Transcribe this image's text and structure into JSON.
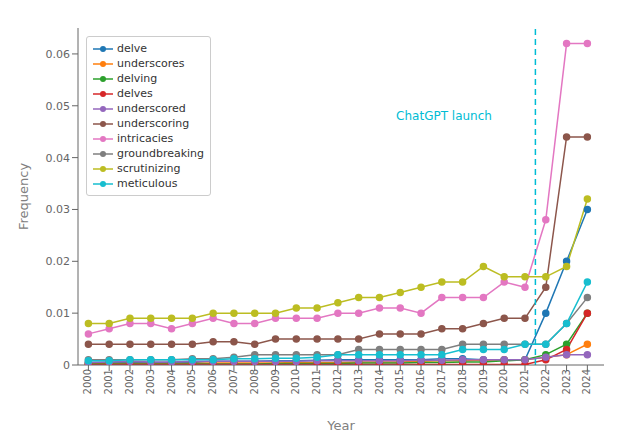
{
  "chart_data": {
    "type": "line",
    "xlabel": "Year",
    "ylabel": "Frequency",
    "x": [
      2000,
      2001,
      2002,
      2003,
      2004,
      2005,
      2006,
      2007,
      2008,
      2009,
      2010,
      2011,
      2012,
      2013,
      2014,
      2015,
      2016,
      2017,
      2018,
      2019,
      2020,
      2021,
      2022,
      2023,
      2024
    ],
    "xlim": [
      1999.5,
      2024.8
    ],
    "xticks": [
      2000,
      2001,
      2002,
      2003,
      2004,
      2005,
      2006,
      2007,
      2008,
      2009,
      2010,
      2011,
      2012,
      2013,
      2014,
      2015,
      2016,
      2017,
      2018,
      2019,
      2020,
      2021,
      2022,
      2023,
      2024
    ],
    "ylim": [
      0,
      0.065
    ],
    "yticks": [
      0,
      0.01,
      0.02,
      0.03,
      0.04,
      0.05,
      0.06
    ],
    "grid": false,
    "legend": "upper left",
    "marker": "circle",
    "line_style": "solid",
    "series": [
      {
        "name": "delve",
        "color": "#1f77b4",
        "values": [
          0.0005,
          0.0005,
          0.0005,
          0.0005,
          0.0005,
          0.0005,
          0.0007,
          0.0007,
          0.0007,
          0.0008,
          0.0008,
          0.0009,
          0.001,
          0.001,
          0.001,
          0.001,
          0.001,
          0.0012,
          0.0012,
          0.001,
          0.001,
          0.001,
          0.01,
          0.02,
          0.03
        ]
      },
      {
        "name": "underscores",
        "color": "#ff7f0e",
        "values": [
          0.0003,
          0.0003,
          0.0003,
          0.0003,
          0.0003,
          0.0003,
          0.0004,
          0.0004,
          0.0004,
          0.0004,
          0.0005,
          0.0005,
          0.0005,
          0.0006,
          0.0006,
          0.0006,
          0.0007,
          0.0008,
          0.0008,
          0.0009,
          0.001,
          0.001,
          0.0015,
          0.002,
          0.004
        ]
      },
      {
        "name": "delving",
        "color": "#2ca02c",
        "values": [
          0.0002,
          0.0002,
          0.0002,
          0.0002,
          0.0002,
          0.0002,
          0.0002,
          0.0002,
          0.0002,
          0.0003,
          0.0003,
          0.0003,
          0.0003,
          0.0004,
          0.0004,
          0.0004,
          0.0005,
          0.0005,
          0.0006,
          0.0006,
          0.0008,
          0.001,
          0.002,
          0.004,
          0.01
        ]
      },
      {
        "name": "delves",
        "color": "#d62728",
        "values": [
          0.0001,
          0.0001,
          0.0001,
          0.0001,
          0.0001,
          0.0001,
          0.0001,
          0.0001,
          0.0001,
          0.0001,
          0.0001,
          0.0001,
          0.0001,
          0.0001,
          0.0001,
          0.0001,
          0.0001,
          0.0001,
          0.0001,
          0.0001,
          0.0001,
          0.0001,
          0.001,
          0.003,
          0.01
        ]
      },
      {
        "name": "underscored",
        "color": "#9467bd",
        "values": [
          0.0005,
          0.0006,
          0.0007,
          0.0006,
          0.0006,
          0.0007,
          0.0007,
          0.0007,
          0.0007,
          0.0007,
          0.0007,
          0.0008,
          0.0008,
          0.0008,
          0.0008,
          0.0008,
          0.0009,
          0.0009,
          0.001,
          0.001,
          0.001,
          0.001,
          0.0015,
          0.002,
          0.002
        ]
      },
      {
        "name": "underscoring",
        "color": "#8c564b",
        "values": [
          0.004,
          0.004,
          0.004,
          0.004,
          0.004,
          0.004,
          0.0045,
          0.0045,
          0.004,
          0.005,
          0.005,
          0.005,
          0.005,
          0.005,
          0.006,
          0.006,
          0.006,
          0.007,
          0.007,
          0.008,
          0.009,
          0.009,
          0.015,
          0.044,
          0.044
        ]
      },
      {
        "name": "intricacies",
        "color": "#e377c2",
        "values": [
          0.006,
          0.007,
          0.008,
          0.008,
          0.007,
          0.008,
          0.009,
          0.008,
          0.008,
          0.009,
          0.009,
          0.009,
          0.01,
          0.01,
          0.011,
          0.011,
          0.01,
          0.013,
          0.013,
          0.013,
          0.016,
          0.015,
          0.028,
          0.062,
          0.062
        ]
      },
      {
        "name": "groundbreaking",
        "color": "#7f7f7f",
        "values": [
          0.001,
          0.001,
          0.001,
          0.001,
          0.001,
          0.0012,
          0.0012,
          0.0015,
          0.002,
          0.002,
          0.002,
          0.002,
          0.002,
          0.003,
          0.003,
          0.003,
          0.003,
          0.003,
          0.004,
          0.004,
          0.004,
          0.004,
          0.004,
          0.008,
          0.013
        ]
      },
      {
        "name": "scrutinizing",
        "color": "#bcbd22",
        "values": [
          0.008,
          0.008,
          0.009,
          0.009,
          0.009,
          0.009,
          0.01,
          0.01,
          0.01,
          0.01,
          0.011,
          0.011,
          0.012,
          0.013,
          0.013,
          0.014,
          0.015,
          0.016,
          0.016,
          0.019,
          0.017,
          0.017,
          0.017,
          0.019,
          0.032
        ]
      },
      {
        "name": "meticulous",
        "color": "#17becf",
        "values": [
          0.0008,
          0.0008,
          0.001,
          0.001,
          0.001,
          0.001,
          0.001,
          0.0012,
          0.0012,
          0.0013,
          0.0013,
          0.0015,
          0.002,
          0.002,
          0.002,
          0.002,
          0.002,
          0.002,
          0.003,
          0.003,
          0.003,
          0.004,
          0.004,
          0.008,
          0.016
        ]
      }
    ],
    "reference_lines": [
      {
        "x": 2021.5,
        "color": "#00bcd4",
        "line_style": "dashed"
      }
    ],
    "annotations": [
      {
        "text": "ChatGPT launch",
        "x": 2014.8,
        "y": 0.048,
        "color": "#00bcd4"
      }
    ]
  }
}
